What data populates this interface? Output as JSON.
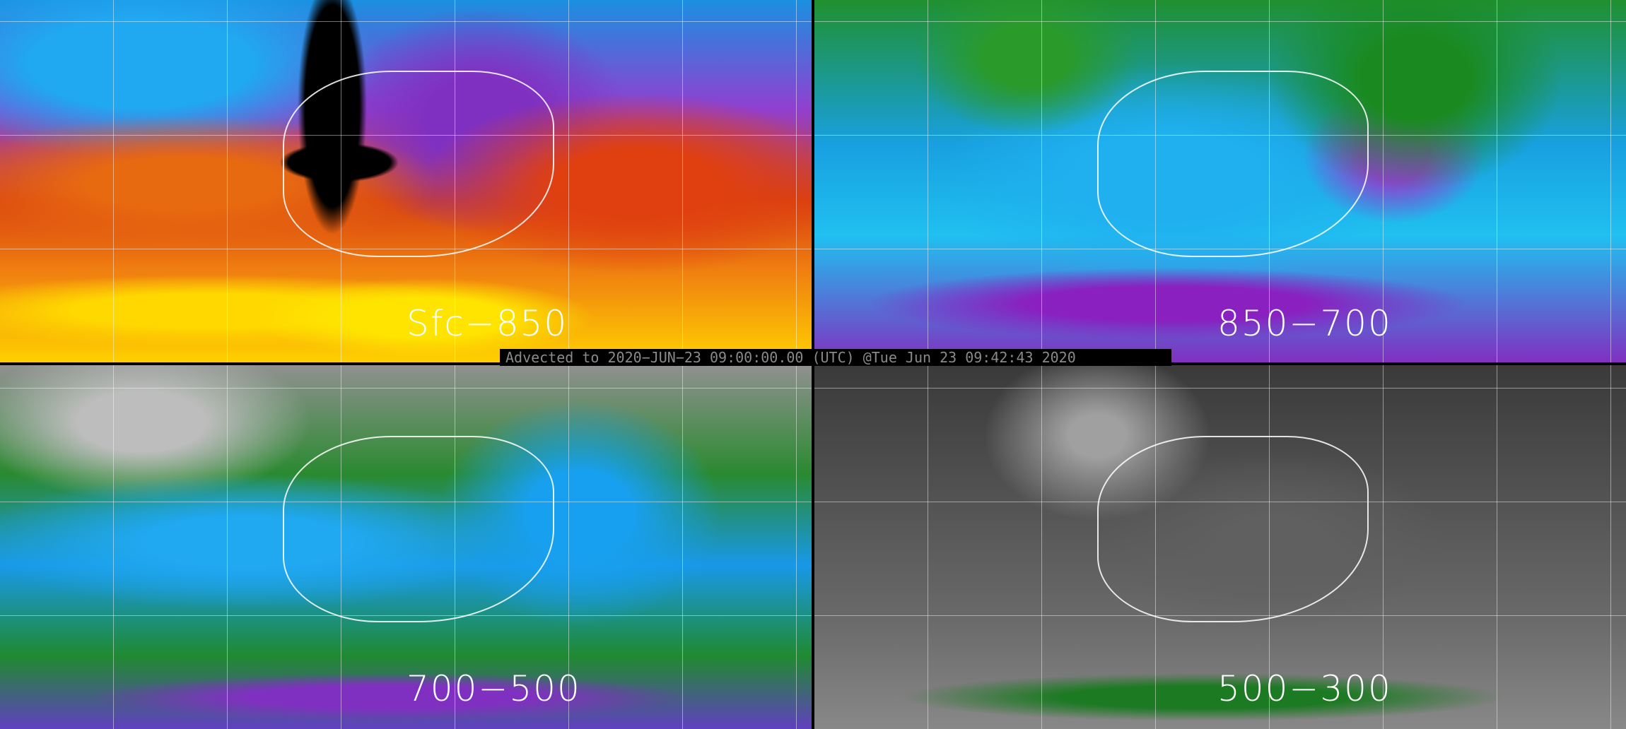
{
  "panels": [
    {
      "label": "Sfc−850"
    },
    {
      "label": "850−700"
    },
    {
      "label": "700−500"
    },
    {
      "label": "500−300"
    }
  ],
  "caption": "Advected to 2020−JUN−23 09:00:00.00 (UTC) @Tue Jun 23 09:42:43 2020",
  "colors": {
    "divider": "#000000",
    "caption_text": "#8a8a8a",
    "label_text": "#ffffff"
  }
}
